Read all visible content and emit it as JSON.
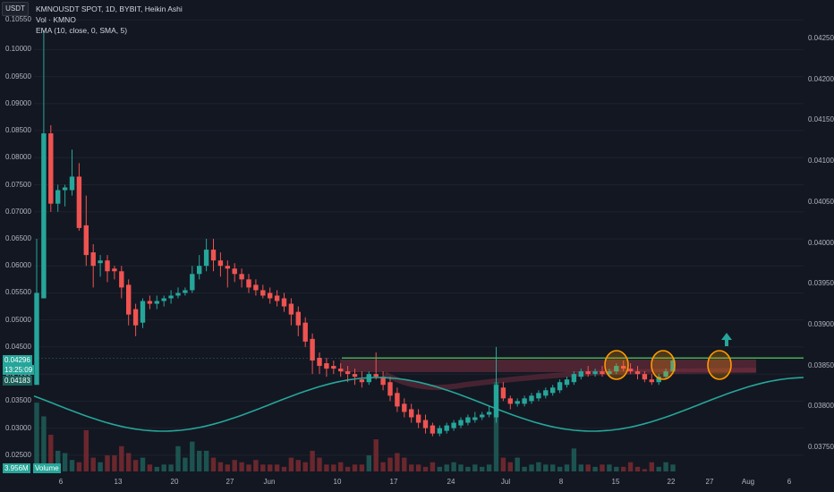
{
  "header": {
    "currency_badge": "USDT",
    "title": "KMNOUSDT SPOT, 1D, BYBIT, Heikin Ashi",
    "volume_label": "Vol · KMNO",
    "ema_label": "EMA (10, close, 0, SMA, 5)"
  },
  "price_tags": {
    "current": "0.04296",
    "countdown": "13:25:09",
    "ema_value": "0.04183",
    "volume_value": "3.956M",
    "volume_tag_label": "Volume"
  },
  "colors": {
    "background": "#131722",
    "up": "#26a69a",
    "down": "#ef5350",
    "ema_line": "#26a69a",
    "horizontal_line": "#4caf50",
    "zone": "#7b2f3f",
    "highlight_circle": "#ff9800"
  },
  "chart_data": {
    "type": "candlestick",
    "left_axis": {
      "ticks": [
        "0.10550",
        "0.10000",
        "0.09500",
        "0.09000",
        "0.08500",
        "0.08000",
        "0.07500",
        "0.07000",
        "0.06500",
        "0.06000",
        "0.05500",
        "0.05000",
        "0.04500",
        "0.04000",
        "0.03500",
        "0.03000",
        "0.02500"
      ],
      "range": [
        0.0215,
        0.1075
      ]
    },
    "right_axis": {
      "ticks": [
        "0.04250",
        "0.04200",
        "0.04150",
        "0.04100",
        "0.04050",
        "0.04000",
        "0.03950",
        "0.03900",
        "0.03850",
        "0.03800",
        "0.03750"
      ],
      "description": "EMA oscillator axis"
    },
    "x_axis": {
      "ticks": [
        "6",
        "13",
        "20",
        "27",
        "Jun",
        "10",
        "17",
        "24",
        "Jul",
        "8",
        "15",
        "22",
        "27",
        "Aug",
        "6"
      ]
    },
    "candles": [
      [
        0.038,
        0.065,
        0.055,
        0.038
      ],
      [
        0.054,
        0.1035,
        0.0845,
        0.054
      ],
      [
        0.0845,
        0.086,
        0.0715,
        0.07
      ],
      [
        0.0715,
        0.075,
        0.074,
        0.07
      ],
      [
        0.074,
        0.075,
        0.0745,
        0.071
      ],
      [
        0.074,
        0.0815,
        0.0765,
        0.073
      ],
      [
        0.0765,
        0.079,
        0.067,
        0.0665
      ],
      [
        0.0675,
        0.073,
        0.062,
        0.06
      ],
      [
        0.0625,
        0.064,
        0.06,
        0.056
      ],
      [
        0.0605,
        0.062,
        0.061,
        0.058
      ],
      [
        0.061,
        0.062,
        0.059,
        0.057
      ],
      [
        0.0595,
        0.06,
        0.059,
        0.0575
      ],
      [
        0.059,
        0.06,
        0.056,
        0.054
      ],
      [
        0.0565,
        0.0575,
        0.051,
        0.049
      ],
      [
        0.052,
        0.053,
        0.049,
        0.047
      ],
      [
        0.0495,
        0.054,
        0.0535,
        0.0485
      ],
      [
        0.0535,
        0.0545,
        0.053,
        0.052
      ],
      [
        0.053,
        0.0545,
        0.0535,
        0.052
      ],
      [
        0.0535,
        0.0545,
        0.054,
        0.0525
      ],
      [
        0.054,
        0.0555,
        0.0545,
        0.053
      ],
      [
        0.0545,
        0.056,
        0.055,
        0.054
      ],
      [
        0.055,
        0.056,
        0.0555,
        0.0545
      ],
      [
        0.0555,
        0.06,
        0.0585,
        0.055
      ],
      [
        0.0585,
        0.062,
        0.06,
        0.0575
      ],
      [
        0.06,
        0.065,
        0.063,
        0.059
      ],
      [
        0.063,
        0.065,
        0.061,
        0.059
      ],
      [
        0.061,
        0.0625,
        0.06,
        0.058
      ],
      [
        0.06,
        0.061,
        0.0595,
        0.056
      ],
      [
        0.0595,
        0.0605,
        0.0585,
        0.057
      ],
      [
        0.0585,
        0.0595,
        0.0575,
        0.056
      ],
      [
        0.0575,
        0.0585,
        0.056,
        0.055
      ],
      [
        0.0565,
        0.0575,
        0.0555,
        0.0545
      ],
      [
        0.0555,
        0.0565,
        0.0545,
        0.054
      ],
      [
        0.055,
        0.056,
        0.054,
        0.053
      ],
      [
        0.0545,
        0.0555,
        0.0535,
        0.0525
      ],
      [
        0.054,
        0.055,
        0.0525,
        0.0515
      ],
      [
        0.053,
        0.054,
        0.051,
        0.049
      ],
      [
        0.0515,
        0.0525,
        0.049,
        0.047
      ],
      [
        0.0495,
        0.0505,
        0.046,
        0.045
      ],
      [
        0.0465,
        0.0475,
        0.0425,
        0.04
      ],
      [
        0.043,
        0.044,
        0.0415,
        0.04
      ],
      [
        0.042,
        0.043,
        0.041,
        0.0395
      ],
      [
        0.0415,
        0.0425,
        0.041,
        0.04
      ],
      [
        0.041,
        0.042,
        0.0405,
        0.0395
      ],
      [
        0.0405,
        0.0415,
        0.04,
        0.0385
      ],
      [
        0.04,
        0.041,
        0.0395,
        0.038
      ],
      [
        0.039,
        0.0405,
        0.0385,
        0.0375
      ],
      [
        0.0385,
        0.0405,
        0.04,
        0.038
      ],
      [
        0.04,
        0.044,
        0.0395,
        0.039
      ],
      [
        0.0395,
        0.0405,
        0.038,
        0.037
      ],
      [
        0.0385,
        0.0395,
        0.036,
        0.035
      ],
      [
        0.0365,
        0.0375,
        0.034,
        0.033
      ],
      [
        0.0345,
        0.0355,
        0.033,
        0.032
      ],
      [
        0.0335,
        0.0345,
        0.032,
        0.031
      ],
      [
        0.0325,
        0.0335,
        0.031,
        0.03
      ],
      [
        0.0315,
        0.0325,
        0.03,
        0.029
      ],
      [
        0.0305,
        0.031,
        0.029,
        0.0285
      ],
      [
        0.029,
        0.0305,
        0.03,
        0.0285
      ],
      [
        0.0295,
        0.031,
        0.0305,
        0.029
      ],
      [
        0.03,
        0.0315,
        0.031,
        0.0295
      ],
      [
        0.0305,
        0.032,
        0.0315,
        0.03
      ],
      [
        0.031,
        0.0325,
        0.032,
        0.0305
      ],
      [
        0.0315,
        0.033,
        0.032,
        0.031
      ],
      [
        0.032,
        0.033,
        0.0325,
        0.0315
      ],
      [
        0.0325,
        0.034,
        0.033,
        0.032
      ],
      [
        0.032,
        0.045,
        0.038,
        0.031
      ],
      [
        0.0375,
        0.0385,
        0.0355,
        0.035
      ],
      [
        0.0355,
        0.036,
        0.0345,
        0.0335
      ],
      [
        0.0345,
        0.0355,
        0.035,
        0.034
      ],
      [
        0.0345,
        0.036,
        0.0355,
        0.034
      ],
      [
        0.035,
        0.0365,
        0.036,
        0.0345
      ],
      [
        0.0355,
        0.037,
        0.0365,
        0.035
      ],
      [
        0.036,
        0.0375,
        0.037,
        0.0355
      ],
      [
        0.0365,
        0.038,
        0.0375,
        0.036
      ],
      [
        0.037,
        0.039,
        0.0385,
        0.0365
      ],
      [
        0.038,
        0.0395,
        0.039,
        0.0375
      ],
      [
        0.0385,
        0.0405,
        0.04,
        0.038
      ],
      [
        0.0395,
        0.041,
        0.0405,
        0.039
      ],
      [
        0.0405,
        0.0415,
        0.04,
        0.0395
      ],
      [
        0.04,
        0.041,
        0.0405,
        0.0395
      ],
      [
        0.0405,
        0.0415,
        0.04,
        0.0395
      ],
      [
        0.04,
        0.041,
        0.0405,
        0.0395
      ],
      [
        0.0405,
        0.042,
        0.0415,
        0.04
      ],
      [
        0.0415,
        0.0425,
        0.041,
        0.0405
      ],
      [
        0.041,
        0.042,
        0.0405,
        0.04
      ],
      [
        0.0405,
        0.0415,
        0.04,
        0.039
      ],
      [
        0.04,
        0.0405,
        0.039,
        0.0385
      ],
      [
        0.039,
        0.04,
        0.0385,
        0.038
      ],
      [
        0.0385,
        0.04,
        0.0395,
        0.038
      ],
      [
        0.0395,
        0.041,
        0.0405,
        0.039
      ],
      [
        0.0405,
        0.043,
        0.0425,
        0.04
      ]
    ],
    "volumes": [
      3.0,
      2.4,
      1.6,
      0.9,
      0.8,
      0.5,
      0.4,
      1.8,
      0.6,
      0.4,
      0.7,
      0.7,
      1.1,
      0.8,
      0.5,
      0.6,
      0.3,
      0.2,
      0.3,
      0.3,
      1.1,
      0.6,
      1.3,
      0.9,
      0.9,
      0.6,
      0.4,
      0.3,
      0.5,
      0.4,
      0.3,
      0.5,
      0.3,
      0.3,
      0.3,
      0.2,
      0.6,
      0.5,
      0.4,
      0.9,
      0.6,
      0.3,
      0.3,
      0.4,
      0.2,
      0.3,
      0.3,
      0.7,
      1.4,
      0.4,
      0.6,
      0.8,
      0.6,
      0.3,
      0.3,
      0.2,
      0.4,
      0.2,
      0.3,
      0.4,
      0.3,
      0.2,
      0.3,
      0.2,
      0.3,
      3.9,
      0.6,
      0.4,
      0.6,
      0.2,
      0.3,
      0.4,
      0.3,
      0.3,
      0.2,
      0.3,
      1.0,
      0.3,
      0.3,
      0.2,
      0.3,
      0.3,
      0.2,
      0.2,
      0.4,
      0.2,
      0.1,
      0.4,
      0.2,
      0.4,
      0.3
    ],
    "horizontal_line_price": 0.04296,
    "annotations": [
      "three orange circles marking touches of the resistance line",
      "green up arrow above the last candle"
    ]
  }
}
